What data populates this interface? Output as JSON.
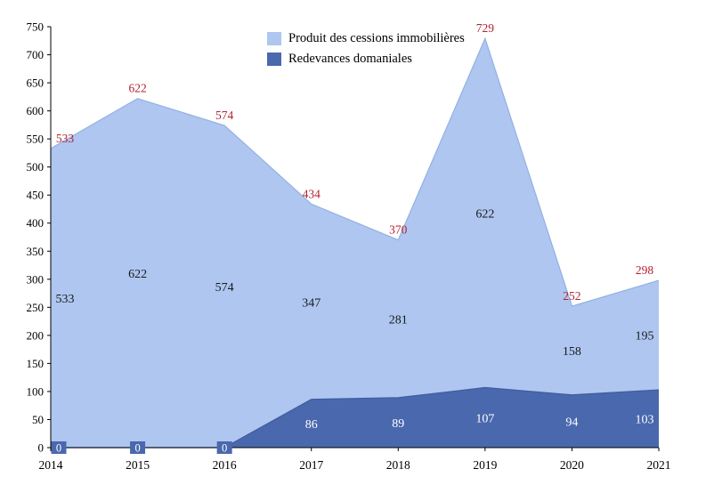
{
  "chart_data": {
    "type": "area",
    "stacked": true,
    "title": "",
    "xlabel": "",
    "ylabel": "",
    "grid": false,
    "legend_position": "top-center",
    "categories": [
      "2014",
      "2015",
      "2016",
      "2017",
      "2018",
      "2019",
      "2020",
      "2021"
    ],
    "series": [
      {
        "name": "Produit des cessions immobilières",
        "values": [
          533,
          622,
          574,
          347,
          281,
          622,
          158,
          195
        ],
        "color": "#aec6f0",
        "edge_color": "#93b1e2",
        "label_color": "#1a1a1a"
      },
      {
        "name": "Redevances domaniales",
        "values": [
          0,
          0,
          0,
          86,
          89,
          107,
          94,
          103
        ],
        "color": "#4a68ad",
        "edge_color": "#3f5d9e",
        "label_color": "#ffffff"
      }
    ],
    "totals": [
      533,
      622,
      574,
      434,
      370,
      729,
      252,
      298
    ],
    "total_label_color": "#b22230",
    "axis_color": "#000000",
    "tick_label_color": "#000000",
    "ylim": [
      0,
      750
    ],
    "ytick_step": 50
  }
}
